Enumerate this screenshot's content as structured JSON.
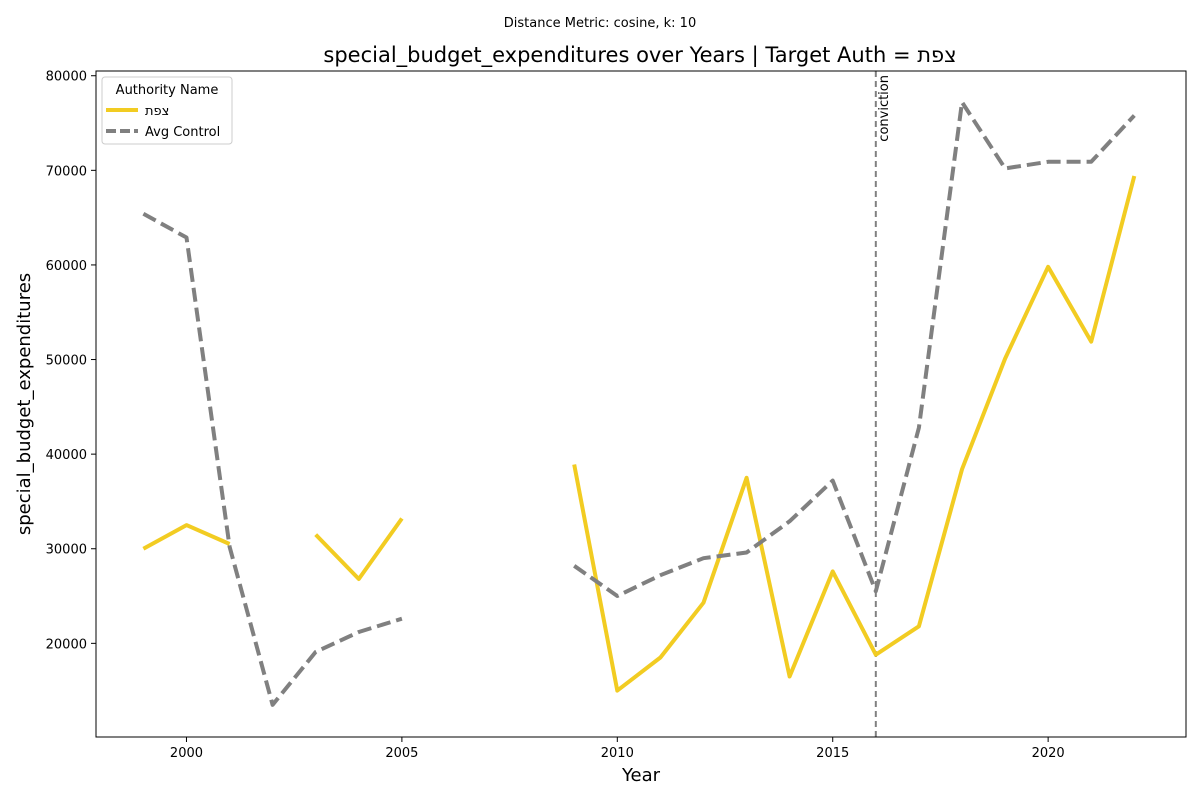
{
  "chart_data": {
    "type": "line",
    "subtitle": "Distance Metric: cosine, k: 10",
    "title": "special_budget_expenditures over Years | Target Auth = צפת",
    "xlabel": "Year",
    "ylabel": "special_budget_expenditures",
    "xlim": [
      1997.9,
      2023.2
    ],
    "ylim": [
      10100,
      80500
    ],
    "x_ticks": [
      2000,
      2005,
      2010,
      2015,
      2020
    ],
    "y_ticks": [
      20000,
      30000,
      40000,
      50000,
      60000,
      70000,
      80000
    ],
    "grid": false,
    "legend": {
      "title": "Authority Name",
      "position": "top-left"
    },
    "series": [
      {
        "name": "צפת",
        "color": "#f2cc22",
        "linestyle": "solid",
        "points": [
          [
            1999,
            30000
          ],
          [
            2000,
            32500
          ],
          [
            2001,
            30500
          ],
          [
            2002,
            null
          ],
          [
            2003,
            31500
          ],
          [
            2004,
            26800
          ],
          [
            2005,
            33200
          ],
          [
            2006,
            null
          ],
          [
            2007,
            null
          ],
          [
            2008,
            null
          ],
          [
            2009,
            38900
          ],
          [
            2010,
            15000
          ],
          [
            2011,
            18500
          ],
          [
            2012,
            24300
          ],
          [
            2013,
            37500
          ],
          [
            2014,
            16500
          ],
          [
            2015,
            27600
          ],
          [
            2016,
            18800
          ],
          [
            2017,
            21800
          ],
          [
            2018,
            38400
          ],
          [
            2019,
            50100
          ],
          [
            2020,
            59800
          ],
          [
            2021,
            51900
          ],
          [
            2022,
            69400
          ]
        ]
      },
      {
        "name": "Avg Control",
        "color": "#808080",
        "linestyle": "dashed",
        "points": [
          [
            1999,
            65400
          ],
          [
            2000,
            62900
          ],
          [
            2001,
            30200
          ],
          [
            2002,
            13500
          ],
          [
            2003,
            19100
          ],
          [
            2004,
            21200
          ],
          [
            2005,
            22600
          ],
          [
            2006,
            null
          ],
          [
            2007,
            null
          ],
          [
            2008,
            null
          ],
          [
            2009,
            28200
          ],
          [
            2010,
            25000
          ],
          [
            2011,
            27200
          ],
          [
            2012,
            29000
          ],
          [
            2013,
            29600
          ],
          [
            2014,
            32900
          ],
          [
            2015,
            37200
          ],
          [
            2016,
            25500
          ],
          [
            2017,
            42800
          ],
          [
            2018,
            77200
          ],
          [
            2019,
            70200
          ],
          [
            2020,
            70900
          ],
          [
            2021,
            70900
          ],
          [
            2022,
            75800
          ]
        ]
      }
    ],
    "annotations": [
      {
        "type": "vline",
        "x": 2016,
        "label": "conviction",
        "color": "#808080",
        "linestyle": "dashed"
      }
    ]
  }
}
